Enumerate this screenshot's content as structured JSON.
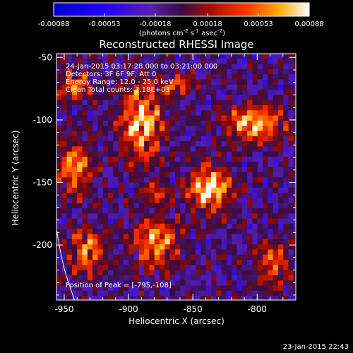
{
  "colorbar": {
    "tick_labels": [
      "-0.00088",
      "-0.00053",
      "-0.00018",
      "0.00018",
      "0.00053",
      "0.00088"
    ],
    "tick_values": [
      -0.00088,
      -0.00053,
      -0.00018,
      0.00018,
      0.00053,
      0.00088
    ],
    "range": [
      -0.00088,
      0.00088
    ],
    "units_prefix": "(photons cm",
    "units_exp1": "-2",
    "units_mid": " s",
    "units_exp2": "-1",
    "units_tail": " asec",
    "units_exp3": "-2",
    "units_close": ")",
    "colormap": "rhessi-blue-red-yellow-white"
  },
  "info": {
    "line1": "24-Jan-2015 03:17:28.000 to 03:21:00.000",
    "line2": "Detectors: 3F 6F 9F, Att 0",
    "line3": "Energy Range: 12.0 - 25.0 keV",
    "line4": "Clean    Total counts: 3.18E+03"
  },
  "peak_label": "Position of Peak = [-795,-108]",
  "timestamp": "23-Jan-2015 22:43",
  "chart_data": {
    "type": "heatmap",
    "title": "Reconstructed RHESSI Image",
    "xlabel": "Heliocentric X (arcsec)",
    "ylabel": "Heliocentric Y (arcsec)",
    "xlim": [
      -956,
      -770
    ],
    "ylim": [
      -244,
      -47
    ],
    "x_ticks": [
      -950,
      -900,
      -850,
      -800
    ],
    "x_tick_labels": [
      "-950",
      "-900",
      "-850",
      "-800"
    ],
    "y_ticks": [
      -50,
      -100,
      -150,
      -200
    ],
    "y_tick_labels": [
      "-50",
      "-100",
      "-150",
      "-200"
    ],
    "peak": [
      -795,
      -108
    ],
    "sources": [
      {
        "x": -890,
        "y": -102,
        "sx": 11,
        "sy": 20,
        "amp": 0.88
      },
      {
        "x": -802,
        "y": -103,
        "sx": 15,
        "sy": 9,
        "amp": 0.9
      },
      {
        "x": -837,
        "y": -155,
        "sx": 11,
        "sy": 12,
        "amp": 1.0
      },
      {
        "x": -942,
        "y": -138,
        "sx": 9,
        "sy": 14,
        "amp": 0.72
      },
      {
        "x": -932,
        "y": -205,
        "sx": 9,
        "sy": 12,
        "amp": 0.7
      },
      {
        "x": -879,
        "y": -198,
        "sx": 12,
        "sy": 13,
        "amp": 0.74
      },
      {
        "x": -942,
        "y": -72,
        "sx": 9,
        "sy": 9,
        "amp": 0.55
      },
      {
        "x": -862,
        "y": -72,
        "sx": 8,
        "sy": 6,
        "amp": 0.5
      },
      {
        "x": -788,
        "y": -215,
        "sx": 9,
        "sy": 12,
        "amp": 0.55
      },
      {
        "x": -878,
        "y": -158,
        "sx": 7,
        "sy": 7,
        "amp": 0.4
      }
    ],
    "limb_curve": [
      [
        -956,
        -188
      ],
      [
        -953,
        -205
      ],
      [
        -950,
        -219
      ],
      [
        -946,
        -232
      ],
      [
        -942,
        -244
      ]
    ]
  }
}
